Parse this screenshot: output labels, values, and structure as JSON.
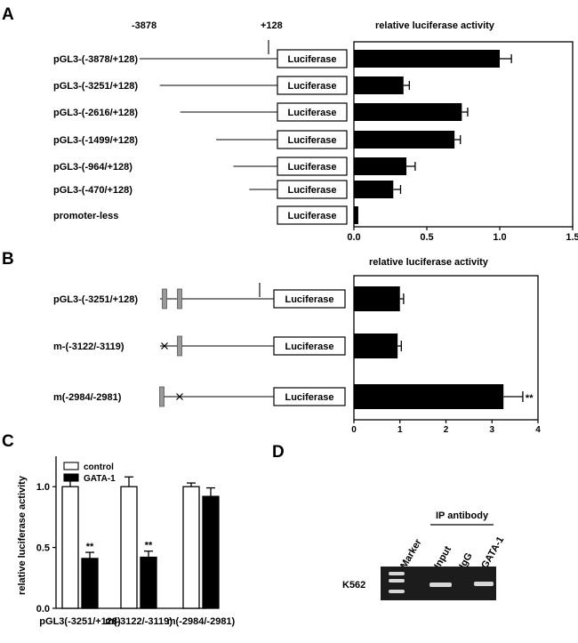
{
  "panels": {
    "A": {
      "letter": "A",
      "coord_start": "-3878",
      "coord_end": "+128",
      "axis_title": "relative luciferase activity",
      "reporter_label": "Luciferase"
    },
    "B": {
      "letter": "B",
      "axis_title": "relative luciferase activity",
      "reporter_label": "Luciferase"
    },
    "C": {
      "letter": "C"
    },
    "D": {
      "letter": "D",
      "cell_line": "K562",
      "ip_header": "IP antibody",
      "lanes": [
        "Marker",
        "Input",
        "IgG",
        "GATA-1"
      ]
    }
  },
  "colors": {
    "bar_fill": "#000000",
    "control_fill": "#ffffff",
    "gel_background": "#1c1c1c",
    "gel_band": "#d8d8d8"
  },
  "chart_data": [
    {
      "panel": "A",
      "type": "bar",
      "orientation": "horizontal",
      "categories": [
        "pGL3-(-3878/+128)",
        "pGL3-(-3251/+128)",
        "pGL3-(-2616/+128)",
        "pGL3-(-1499/+128)",
        "pGL3-(-964/+128)",
        "pGL3-(-470/+128)",
        "promoter-less"
      ],
      "values": [
        1.0,
        0.34,
        0.74,
        0.69,
        0.36,
        0.27,
        0.03
      ],
      "errors": [
        0.08,
        0.04,
        0.04,
        0.04,
        0.06,
        0.05,
        0.0
      ],
      "xlim": [
        0,
        1.5
      ],
      "xticks": [
        "0.0",
        "0.5",
        "1.0",
        "1.5"
      ],
      "xlabel": "relative luciferase activity",
      "construct_starts": [
        -3878,
        -3251,
        -2616,
        -1499,
        -964,
        -470
      ]
    },
    {
      "panel": "B",
      "type": "bar",
      "orientation": "horizontal",
      "categories": [
        "pGL3-(-3251/+128)",
        "m-(-3122/-3119)",
        "m(-2984/-2981)"
      ],
      "values": [
        1.0,
        0.95,
        3.25
      ],
      "errors": [
        0.08,
        0.08,
        0.42
      ],
      "significance": [
        "",
        "",
        "**"
      ],
      "xlim": [
        0,
        4
      ],
      "xticks": [
        "0",
        "1",
        "2",
        "3",
        "4"
      ],
      "xlabel": "relative luciferase activity",
      "site_states": [
        [
          "wt",
          "wt"
        ],
        [
          "mut",
          "wt"
        ],
        [
          "wt",
          "mut"
        ]
      ]
    },
    {
      "panel": "C",
      "type": "bar",
      "orientation": "vertical",
      "categories": [
        "pGL3(-3251/+128)",
        "m(-3122/-3119)",
        "m(-2984/-2981)"
      ],
      "series": [
        {
          "name": "control",
          "values": [
            1.0,
            1.0,
            1.0
          ],
          "errors": [
            0.05,
            0.08,
            0.03
          ],
          "significance": [
            "",
            "",
            ""
          ]
        },
        {
          "name": "GATA-1",
          "values": [
            0.41,
            0.42,
            0.92
          ],
          "errors": [
            0.05,
            0.05,
            0.07
          ],
          "significance": [
            "**",
            "**",
            ""
          ]
        }
      ],
      "ylim": [
        0,
        1.25
      ],
      "yticks": [
        "0.0",
        "0.5",
        "1.0"
      ],
      "ylabel": "relative  luciferase activity",
      "legend_position": "top-left"
    }
  ]
}
